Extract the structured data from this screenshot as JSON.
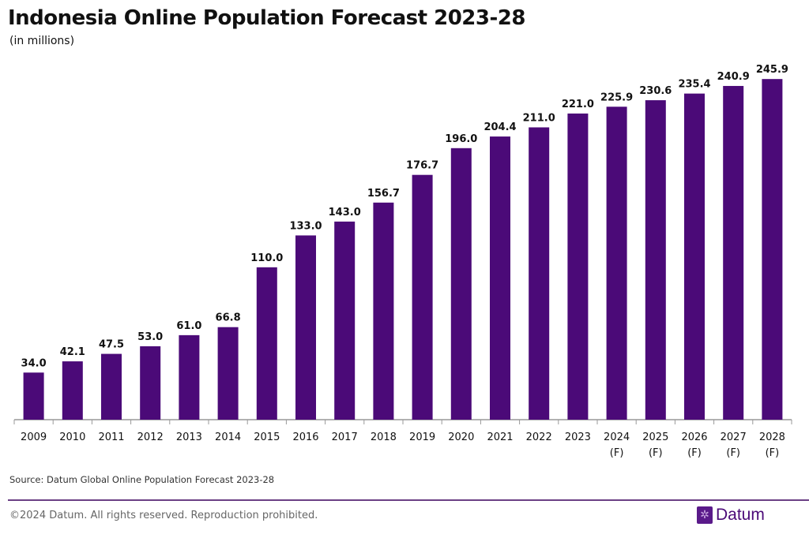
{
  "chart_data": {
    "type": "bar",
    "title": "Indonesia Online Population Forecast 2023-28",
    "subtitle": "(in millions)",
    "categories": [
      "2009",
      "2010",
      "2011",
      "2012",
      "2013",
      "2014",
      "2015",
      "2016",
      "2017",
      "2018",
      "2019",
      "2020",
      "2021",
      "2022",
      "2023",
      "2024\n(F)",
      "2025\n(F)",
      "2026\n(F)",
      "2027\n(F)",
      "2028\n(F)"
    ],
    "values": [
      34.0,
      42.1,
      47.5,
      53.0,
      61.0,
      66.8,
      110.0,
      133.0,
      143.0,
      156.7,
      176.7,
      196.0,
      204.4,
      211.0,
      221.0,
      225.9,
      230.6,
      235.4,
      240.9,
      245.9
    ],
    "data_labels": [
      "34.0",
      "42.1",
      "47.5",
      "53.0",
      "61.0",
      "66.8",
      "110.0",
      "133.0",
      "143.0",
      "156.7",
      "176.7",
      "196.0",
      "204.4",
      "211.0",
      "221.0",
      "225.9",
      "230.6",
      "235.4",
      "240.9",
      "245.9"
    ],
    "ylim": [
      0,
      246
    ],
    "grid": false,
    "bar_color": "#4b0a78"
  },
  "footer": {
    "source": "Source: Datum Global Online Population Forecast 2023-28",
    "copyright": "©2024 Datum. All rights reserved. Reproduction prohibited.",
    "logo_text": "Datum",
    "accent": "#6b3f85"
  }
}
